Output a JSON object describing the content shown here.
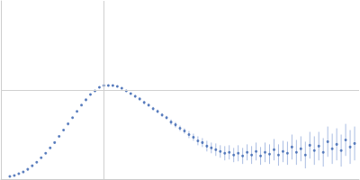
{
  "chart_data": {
    "type": "scatter",
    "color": "#3a64b0",
    "error_color": "#a9bce2",
    "x": [
      0.1,
      0.15,
      0.2,
      0.25,
      0.3,
      0.35,
      0.4,
      0.45,
      0.5,
      0.55,
      0.6,
      0.65,
      0.7,
      0.75,
      0.8,
      0.85,
      0.9,
      0.95,
      1.0,
      1.05,
      1.1,
      1.15,
      1.2,
      1.25,
      1.3,
      1.35,
      1.4,
      1.45,
      1.5,
      1.55,
      1.6,
      1.65,
      1.7,
      1.75,
      1.8,
      1.85,
      1.9,
      1.95,
      2.0,
      2.05,
      2.1,
      2.15,
      2.2,
      2.25,
      2.3,
      2.35,
      2.4,
      2.45,
      2.5,
      2.55,
      2.6,
      2.65,
      2.7,
      2.75,
      2.8,
      2.85,
      2.9,
      2.95,
      3.0,
      3.05,
      3.1,
      3.15,
      3.2,
      3.25,
      3.3,
      3.35,
      3.4,
      3.45,
      3.5,
      3.55,
      3.6,
      3.65,
      3.7,
      3.75,
      3.8,
      3.85,
      3.9,
      3.95
    ],
    "values": [
      0.03,
      0.04,
      0.06,
      0.08,
      0.11,
      0.15,
      0.19,
      0.24,
      0.29,
      0.35,
      0.41,
      0.48,
      0.55,
      0.62,
      0.69,
      0.76,
      0.83,
      0.89,
      0.95,
      0.99,
      1.03,
      1.05,
      1.05,
      1.05,
      1.04,
      1.02,
      0.99,
      0.96,
      0.93,
      0.9,
      0.86,
      0.83,
      0.79,
      0.76,
      0.72,
      0.69,
      0.64,
      0.61,
      0.57,
      0.54,
      0.5,
      0.47,
      0.43,
      0.41,
      0.37,
      0.35,
      0.33,
      0.31,
      0.29,
      0.3,
      0.27,
      0.29,
      0.26,
      0.3,
      0.27,
      0.31,
      0.26,
      0.3,
      0.28,
      0.33,
      0.27,
      0.31,
      0.29,
      0.36,
      0.3,
      0.34,
      0.27,
      0.38,
      0.32,
      0.37,
      0.3,
      0.42,
      0.34,
      0.39,
      0.32,
      0.44,
      0.36,
      0.4
    ],
    "errors": [
      0.005,
      0.005,
      0.005,
      0.005,
      0.005,
      0.005,
      0.005,
      0.005,
      0.005,
      0.005,
      0.005,
      0.005,
      0.005,
      0.005,
      0.005,
      0.005,
      0.005,
      0.005,
      0.01,
      0.01,
      0.01,
      0.01,
      0.01,
      0.01,
      0.01,
      0.01,
      0.01,
      0.01,
      0.015,
      0.015,
      0.015,
      0.015,
      0.02,
      0.02,
      0.02,
      0.02,
      0.03,
      0.03,
      0.03,
      0.03,
      0.04,
      0.04,
      0.05,
      0.05,
      0.06,
      0.06,
      0.07,
      0.07,
      0.08,
      0.08,
      0.08,
      0.09,
      0.09,
      0.09,
      0.1,
      0.1,
      0.1,
      0.11,
      0.11,
      0.12,
      0.12,
      0.12,
      0.13,
      0.14,
      0.14,
      0.14,
      0.15,
      0.15,
      0.16,
      0.16,
      0.16,
      0.17,
      0.17,
      0.18,
      0.18,
      0.18,
      0.19,
      0.19
    ],
    "xlim": [
      0,
      4
    ],
    "xticks": [
      1.15
    ],
    "ylim": [
      0,
      2
    ],
    "yticks": [
      1
    ],
    "grid": true,
    "tick_labels": false,
    "marker": "circle"
  }
}
